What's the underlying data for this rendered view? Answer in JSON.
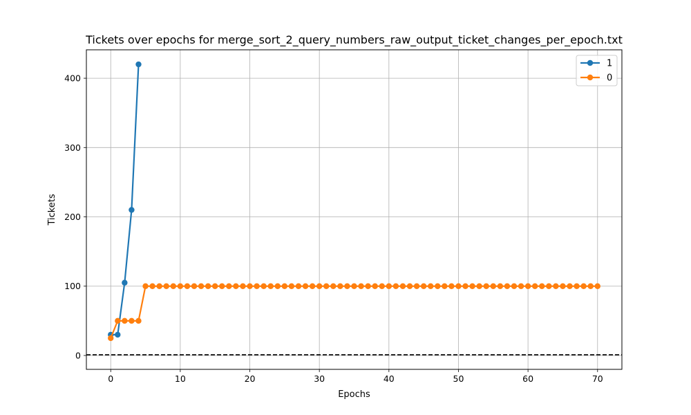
{
  "chart_data": {
    "type": "line",
    "title": "Tickets over epochs for merge_sort_2_query_numbers_raw_output_ticket_changes_per_epoch.txt",
    "xlabel": "Epochs",
    "ylabel": "Tickets",
    "xlim": [
      -3.5,
      73.5
    ],
    "ylim": [
      -20,
      441
    ],
    "x_ticks": [
      0,
      10,
      20,
      30,
      40,
      50,
      60,
      70
    ],
    "y_ticks": [
      0,
      100,
      200,
      300,
      400
    ],
    "grid": true,
    "legend_position": "top-right",
    "reference_line": {
      "y": 1,
      "style": "dashed",
      "color": "#000000"
    },
    "series": [
      {
        "name": "1",
        "color": "#1f77b4",
        "x": [
          0,
          1,
          2,
          3,
          4
        ],
        "y": [
          30,
          30,
          105,
          210,
          420
        ]
      },
      {
        "name": "0",
        "color": "#ff7f0e",
        "x": [
          0,
          1,
          2,
          3,
          4,
          5,
          6,
          7,
          8,
          9,
          10,
          11,
          12,
          13,
          14,
          15,
          16,
          17,
          18,
          19,
          20,
          21,
          22,
          23,
          24,
          25,
          26,
          27,
          28,
          29,
          30,
          31,
          32,
          33,
          34,
          35,
          36,
          37,
          38,
          39,
          40,
          41,
          42,
          43,
          44,
          45,
          46,
          47,
          48,
          49,
          50,
          51,
          52,
          53,
          54,
          55,
          56,
          57,
          58,
          59,
          60,
          61,
          62,
          63,
          64,
          65,
          66,
          67,
          68,
          69,
          70
        ],
        "y": [
          25,
          50,
          50,
          50,
          50,
          100,
          100,
          100,
          100,
          100,
          100,
          100,
          100,
          100,
          100,
          100,
          100,
          100,
          100,
          100,
          100,
          100,
          100,
          100,
          100,
          100,
          100,
          100,
          100,
          100,
          100,
          100,
          100,
          100,
          100,
          100,
          100,
          100,
          100,
          100,
          100,
          100,
          100,
          100,
          100,
          100,
          100,
          100,
          100,
          100,
          100,
          100,
          100,
          100,
          100,
          100,
          100,
          100,
          100,
          100,
          100,
          100,
          100,
          100,
          100,
          100,
          100,
          100,
          100,
          100,
          100
        ]
      }
    ]
  }
}
